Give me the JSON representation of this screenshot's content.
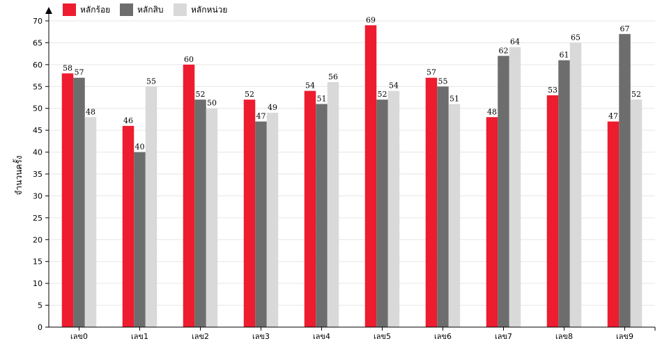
{
  "chart_data": {
    "type": "bar",
    "categories": [
      "เลข0",
      "เลข1",
      "เลข2",
      "เลข3",
      "เลข4",
      "เลข5",
      "เลข6",
      "เลข7",
      "เลข8",
      "เลข9"
    ],
    "series": [
      {
        "name": "หลักร้อย",
        "color": "#ed1c2e",
        "values": [
          58,
          46,
          60,
          52,
          54,
          69,
          57,
          48,
          53,
          47
        ]
      },
      {
        "name": "หลักสิบ",
        "color": "#6d6d6d",
        "values": [
          57,
          40,
          52,
          47,
          51,
          52,
          55,
          62,
          61,
          67
        ]
      },
      {
        "name": "หลักหน่วย",
        "color": "#d9d9d9",
        "values": [
          48,
          55,
          50,
          49,
          56,
          54,
          51,
          64,
          65,
          52
        ]
      }
    ],
    "ylabel": "จำนวนครั้ง",
    "ylim": [
      0,
      70
    ],
    "yticks": [
      0,
      5,
      10,
      15,
      20,
      25,
      30,
      35,
      40,
      45,
      50,
      55,
      60,
      65,
      70
    ],
    "grid": true,
    "legend_position": "top-left"
  }
}
